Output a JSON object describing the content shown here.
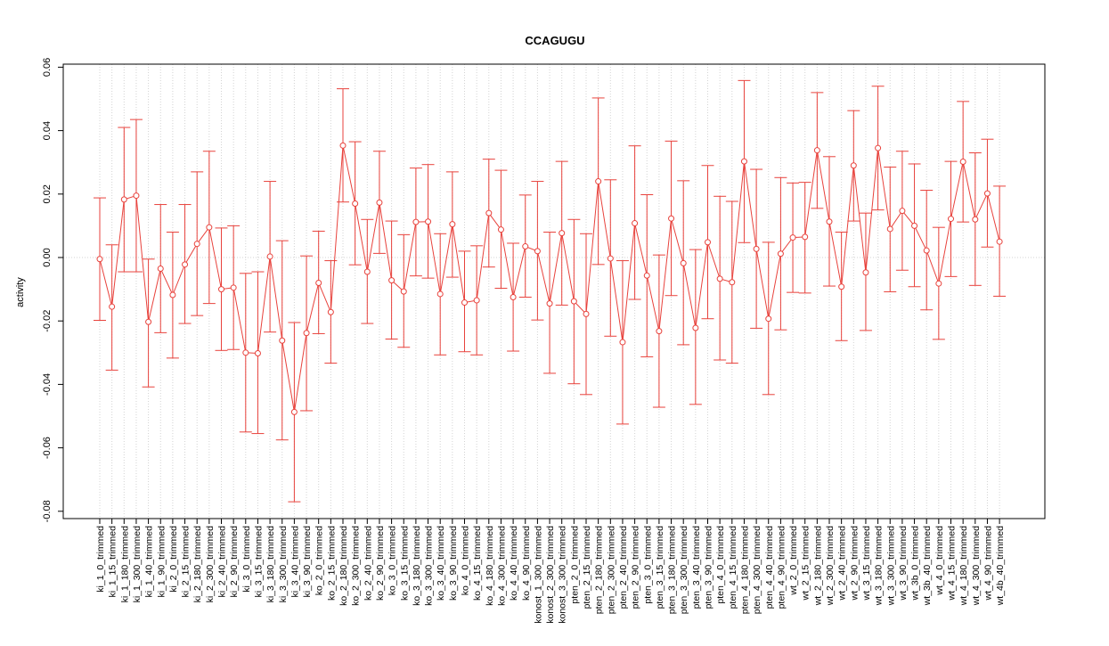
{
  "chart_data": {
    "type": "line",
    "title": "CCAGUGU",
    "xlabel": "",
    "ylabel": "activity",
    "ylim": [
      -0.083,
      0.06
    ],
    "yticks": [
      -0.08,
      -0.06,
      -0.04,
      -0.02,
      0.0,
      0.02,
      0.04,
      0.06
    ],
    "ytick_labels": [
      "-0.08",
      "-0.06",
      "-0.04",
      "-0.02",
      "0.00",
      "0.02",
      "0.04",
      "0.06"
    ],
    "grid": true,
    "legend": "none",
    "colors": {
      "series": "#e8423c",
      "grid": "#d3d3d3",
      "axis": "#000000"
    },
    "categories": [
      "ki_1_0_trimmed",
      "ki_1_15_trimmed",
      "ki_1_180_trimmed",
      "ki_1_300_trimmed",
      "ki_1_40_trimmed",
      "ki_1_90_trimmed",
      "ki_2_0_trimmed",
      "ki_2_15_trimmed",
      "ki_2_180_trimmed",
      "ki_2_300_trimmed",
      "ki_2_40_trimmed",
      "ki_2_90_trimmed",
      "ki_3_0_trimmed",
      "ki_3_15_trimmed",
      "ki_3_180_trimmed",
      "ki_3_300_trimmed",
      "ki_3_40_trimmed",
      "ki_3_90_trimmed",
      "ko_2_0_trimmed",
      "ko_2_15_trimmed",
      "ko_2_180_trimmed",
      "ko_2_300_trimmed",
      "ko_2_40_trimmed",
      "ko_2_90_trimmed",
      "ko_3_0_trimmed",
      "ko_3_15_trimmed",
      "ko_3_180_trimmed",
      "ko_3_300_trimmed",
      "ko_3_40_trimmed",
      "ko_3_90_trimmed",
      "ko_4_0_trimmed",
      "ko_4_15_trimmed",
      "ko_4_180_trimmed",
      "ko_4_300_trimmed",
      "ko_4_40_trimmed",
      "ko_4_90_trimmed",
      "konost_1_300_trimmed",
      "konost_2_300_trimmed",
      "konost_3_300_trimmed",
      "pten_2_0_trimmed",
      "pten_2_15_trimmed",
      "pten_2_180_trimmed",
      "pten_2_300_trimmed",
      "pten_2_40_trimmed",
      "pten_2_90_trimmed",
      "pten_3_0_trimmed",
      "pten_3_15_trimmed",
      "pten_3_180_trimmed",
      "pten_3_300_trimmed",
      "pten_3_40_trimmed",
      "pten_3_90_trimmed",
      "pten_4_0_trimmed",
      "pten_4_15_trimmed",
      "pten_4_180_trimmed",
      "pten_4_300_trimmed",
      "pten_4_40_trimmed",
      "pten_4_90_trimmed",
      "wt_2_0_trimmed",
      "wt_2_15_trimmed",
      "wt_2_180_trimmed",
      "wt_2_300_trimmed",
      "wt_2_40_trimmed",
      "wt_2_90_trimmed",
      "wt_3_15_trimmed",
      "wt_3_180_trimmed",
      "wt_3_300_trimmed",
      "wt_3_90_trimmed",
      "wt_3b_0_trimmed",
      "wt_3b_40_trimmed",
      "wt_4_0_trimmed",
      "wt_4_15_trimmed",
      "wt_4_180_trimmed",
      "wt_4_300_trimmed",
      "wt_4_90_trimmed",
      "wt_4b_40_trimmed"
    ],
    "values": [
      -0.0005,
      -0.0155,
      0.0183,
      0.0195,
      -0.0203,
      -0.0035,
      -0.0118,
      -0.0022,
      0.0043,
      0.0095,
      -0.01,
      -0.0095,
      -0.03,
      -0.0302,
      0.0003,
      -0.0262,
      -0.0487,
      -0.0238,
      -0.008,
      -0.0172,
      0.0353,
      0.017,
      -0.0045,
      0.0173,
      -0.0072,
      -0.0107,
      0.0112,
      0.0113,
      -0.0115,
      0.0105,
      -0.0142,
      -0.0135,
      0.014,
      0.0088,
      -0.0125,
      0.0035,
      0.002,
      -0.0145,
      0.0077,
      -0.0138,
      -0.0178,
      0.024,
      -0.0003,
      -0.0267,
      0.0108,
      -0.0057,
      -0.0232,
      0.0123,
      -0.0018,
      -0.0222,
      0.0048,
      -0.0067,
      -0.0078,
      0.0303,
      0.0027,
      -0.0193,
      0.0012,
      0.0063,
      0.0065,
      0.0338,
      0.0113,
      -0.0092,
      0.029,
      -0.0047,
      0.0345,
      0.009,
      0.0147,
      0.01,
      0.0022,
      -0.0082,
      0.0122,
      0.0302,
      0.012,
      0.0202,
      0.005
    ],
    "lower": [
      -0.0198,
      -0.0355,
      -0.0045,
      -0.0045,
      -0.0408,
      -0.0237,
      -0.0317,
      -0.0208,
      -0.0183,
      -0.0145,
      -0.0293,
      -0.029,
      -0.055,
      -0.0555,
      -0.0235,
      -0.0575,
      -0.077,
      -0.0483,
      -0.024,
      -0.0333,
      0.0175,
      -0.0023,
      -0.0208,
      0.0013,
      -0.0257,
      -0.0283,
      -0.0058,
      -0.0065,
      -0.0307,
      -0.0062,
      -0.0297,
      -0.0307,
      -0.003,
      -0.0097,
      -0.0295,
      -0.0125,
      -0.0197,
      -0.0365,
      -0.015,
      -0.0398,
      -0.0432,
      -0.0022,
      -0.0248,
      -0.0525,
      -0.0132,
      -0.0313,
      -0.0472,
      -0.012,
      -0.0275,
      -0.0463,
      -0.0193,
      -0.0323,
      -0.0333,
      0.0047,
      -0.0223,
      -0.0432,
      -0.0228,
      -0.011,
      -0.0112,
      0.0155,
      -0.009,
      -0.0262,
      0.0115,
      -0.023,
      0.015,
      -0.0108,
      -0.004,
      -0.0092,
      -0.0165,
      -0.0258,
      -0.006,
      0.0112,
      -0.0088,
      0.0033,
      -0.0122
    ],
    "upper": [
      0.0188,
      0.004,
      0.041,
      0.0435,
      -0.0005,
      0.0167,
      0.008,
      0.0167,
      0.027,
      0.0335,
      0.0093,
      0.01,
      -0.005,
      -0.0045,
      0.024,
      0.0053,
      -0.0205,
      0.0005,
      0.0083,
      -0.001,
      0.0532,
      0.0365,
      0.012,
      0.0335,
      0.0115,
      0.0072,
      0.0282,
      0.0293,
      0.0075,
      0.027,
      0.002,
      0.0037,
      0.031,
      0.0275,
      0.0045,
      0.0197,
      0.024,
      0.008,
      0.0303,
      0.012,
      0.0075,
      0.0503,
      0.0245,
      -0.001,
      0.0352,
      0.0198,
      0.0008,
      0.0367,
      0.0242,
      0.0025,
      0.029,
      0.0193,
      0.0177,
      0.0558,
      0.0278,
      0.0048,
      0.0252,
      0.0235,
      0.0237,
      0.052,
      0.0318,
      0.008,
      0.0463,
      0.014,
      0.054,
      0.0285,
      0.0335,
      0.0295,
      0.0212,
      0.0095,
      0.0303,
      0.0492,
      0.033,
      0.0373,
      0.0225
    ]
  }
}
